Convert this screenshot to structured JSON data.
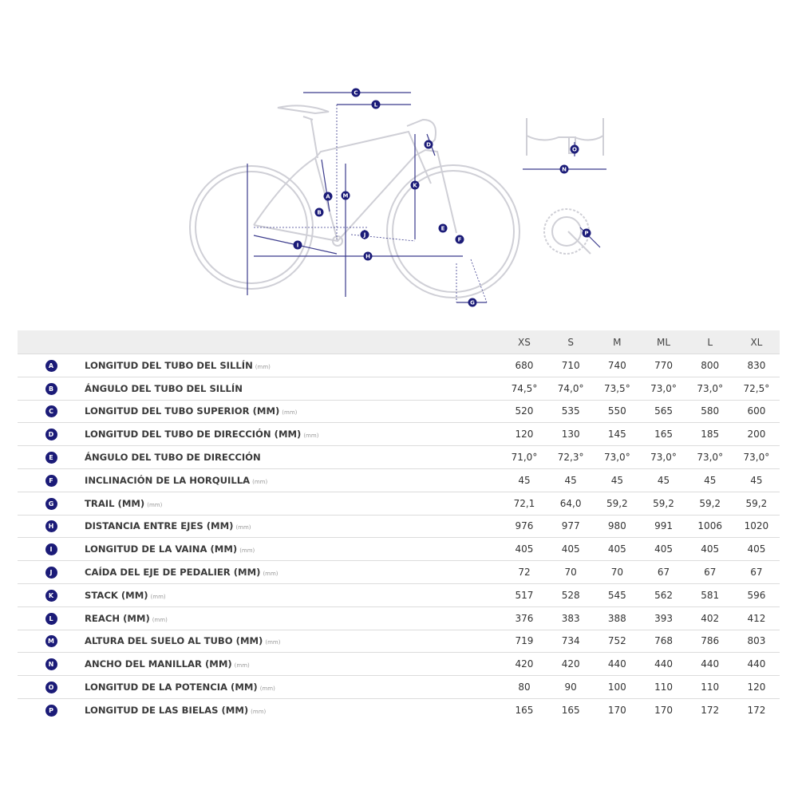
{
  "colors": {
    "badge": "#1b1b78",
    "dimension": "#3b3b8c",
    "bike": "#cfcfd6",
    "header_bg": "#eeeeee"
  },
  "diagram": {
    "labels": [
      "A",
      "B",
      "C",
      "D",
      "E",
      "F",
      "G",
      "H",
      "I",
      "J",
      "K",
      "L",
      "M",
      "N",
      "O",
      "P"
    ]
  },
  "table": {
    "columns": [
      "XS",
      "S",
      "M",
      "ML",
      "L",
      "XL"
    ],
    "rows": [
      {
        "badge": "A",
        "label": "LONGITUD DEL TUBO DEL SILLÍN",
        "unit": "(mm)",
        "values": [
          "680",
          "710",
          "740",
          "770",
          "800",
          "830"
        ]
      },
      {
        "badge": "B",
        "label": "ÁNGULO DEL TUBO DEL SILLÍN",
        "unit": "",
        "values": [
          "74,5°",
          "74,0°",
          "73,5°",
          "73,0°",
          "73,0°",
          "72,5°"
        ]
      },
      {
        "badge": "C",
        "label": "LONGITUD DEL TUBO SUPERIOR (MM)",
        "unit": "(mm)",
        "values": [
          "520",
          "535",
          "550",
          "565",
          "580",
          "600"
        ]
      },
      {
        "badge": "D",
        "label": "LONGITUD DEL TUBO DE DIRECCIÓN (MM)",
        "unit": "(mm)",
        "values": [
          "120",
          "130",
          "145",
          "165",
          "185",
          "200"
        ]
      },
      {
        "badge": "E",
        "label": "ÁNGULO DEL TUBO DE DIRECCIÓN",
        "unit": "",
        "values": [
          "71,0°",
          "72,3°",
          "73,0°",
          "73,0°",
          "73,0°",
          "73,0°"
        ]
      },
      {
        "badge": "F",
        "label": "INCLINACIÓN DE LA HORQUILLA",
        "unit": "(mm)",
        "values": [
          "45",
          "45",
          "45",
          "45",
          "45",
          "45"
        ]
      },
      {
        "badge": "G",
        "label": "TRAIL (MM)",
        "unit": "(mm)",
        "values": [
          "72,1",
          "64,0",
          "59,2",
          "59,2",
          "59,2",
          "59,2"
        ]
      },
      {
        "badge": "H",
        "label": "DISTANCIA ENTRE EJES (MM)",
        "unit": "(mm)",
        "values": [
          "976",
          "977",
          "980",
          "991",
          "1006",
          "1020"
        ]
      },
      {
        "badge": "I",
        "label": "LONGITUD DE LA VAINA (MM)",
        "unit": "(mm)",
        "values": [
          "405",
          "405",
          "405",
          "405",
          "405",
          "405"
        ]
      },
      {
        "badge": "J",
        "label": "CAÍDA DEL EJE DE PEDALIER (MM)",
        "unit": "(mm)",
        "values": [
          "72",
          "70",
          "70",
          "67",
          "67",
          "67"
        ]
      },
      {
        "badge": "K",
        "label": "STACK (MM)",
        "unit": "(mm)",
        "values": [
          "517",
          "528",
          "545",
          "562",
          "581",
          "596"
        ]
      },
      {
        "badge": "L",
        "label": "REACH (MM)",
        "unit": "(mm)",
        "values": [
          "376",
          "383",
          "388",
          "393",
          "402",
          "412"
        ]
      },
      {
        "badge": "M",
        "label": "ALTURA DEL SUELO AL TUBO (MM)",
        "unit": "(mm)",
        "values": [
          "719",
          "734",
          "752",
          "768",
          "786",
          "803"
        ]
      },
      {
        "badge": "N",
        "label": "ANCHO DEL MANILLAR (MM)",
        "unit": "(mm)",
        "values": [
          "420",
          "420",
          "440",
          "440",
          "440",
          "440"
        ]
      },
      {
        "badge": "O",
        "label": "LONGITUD DE LA POTENCIA (MM)",
        "unit": "(mm)",
        "values": [
          "80",
          "90",
          "100",
          "110",
          "110",
          "120"
        ]
      },
      {
        "badge": "P",
        "label": "LONGITUD DE LAS BIELAS (MM)",
        "unit": "(mm)",
        "values": [
          "165",
          "165",
          "170",
          "170",
          "172",
          "172"
        ]
      }
    ]
  }
}
